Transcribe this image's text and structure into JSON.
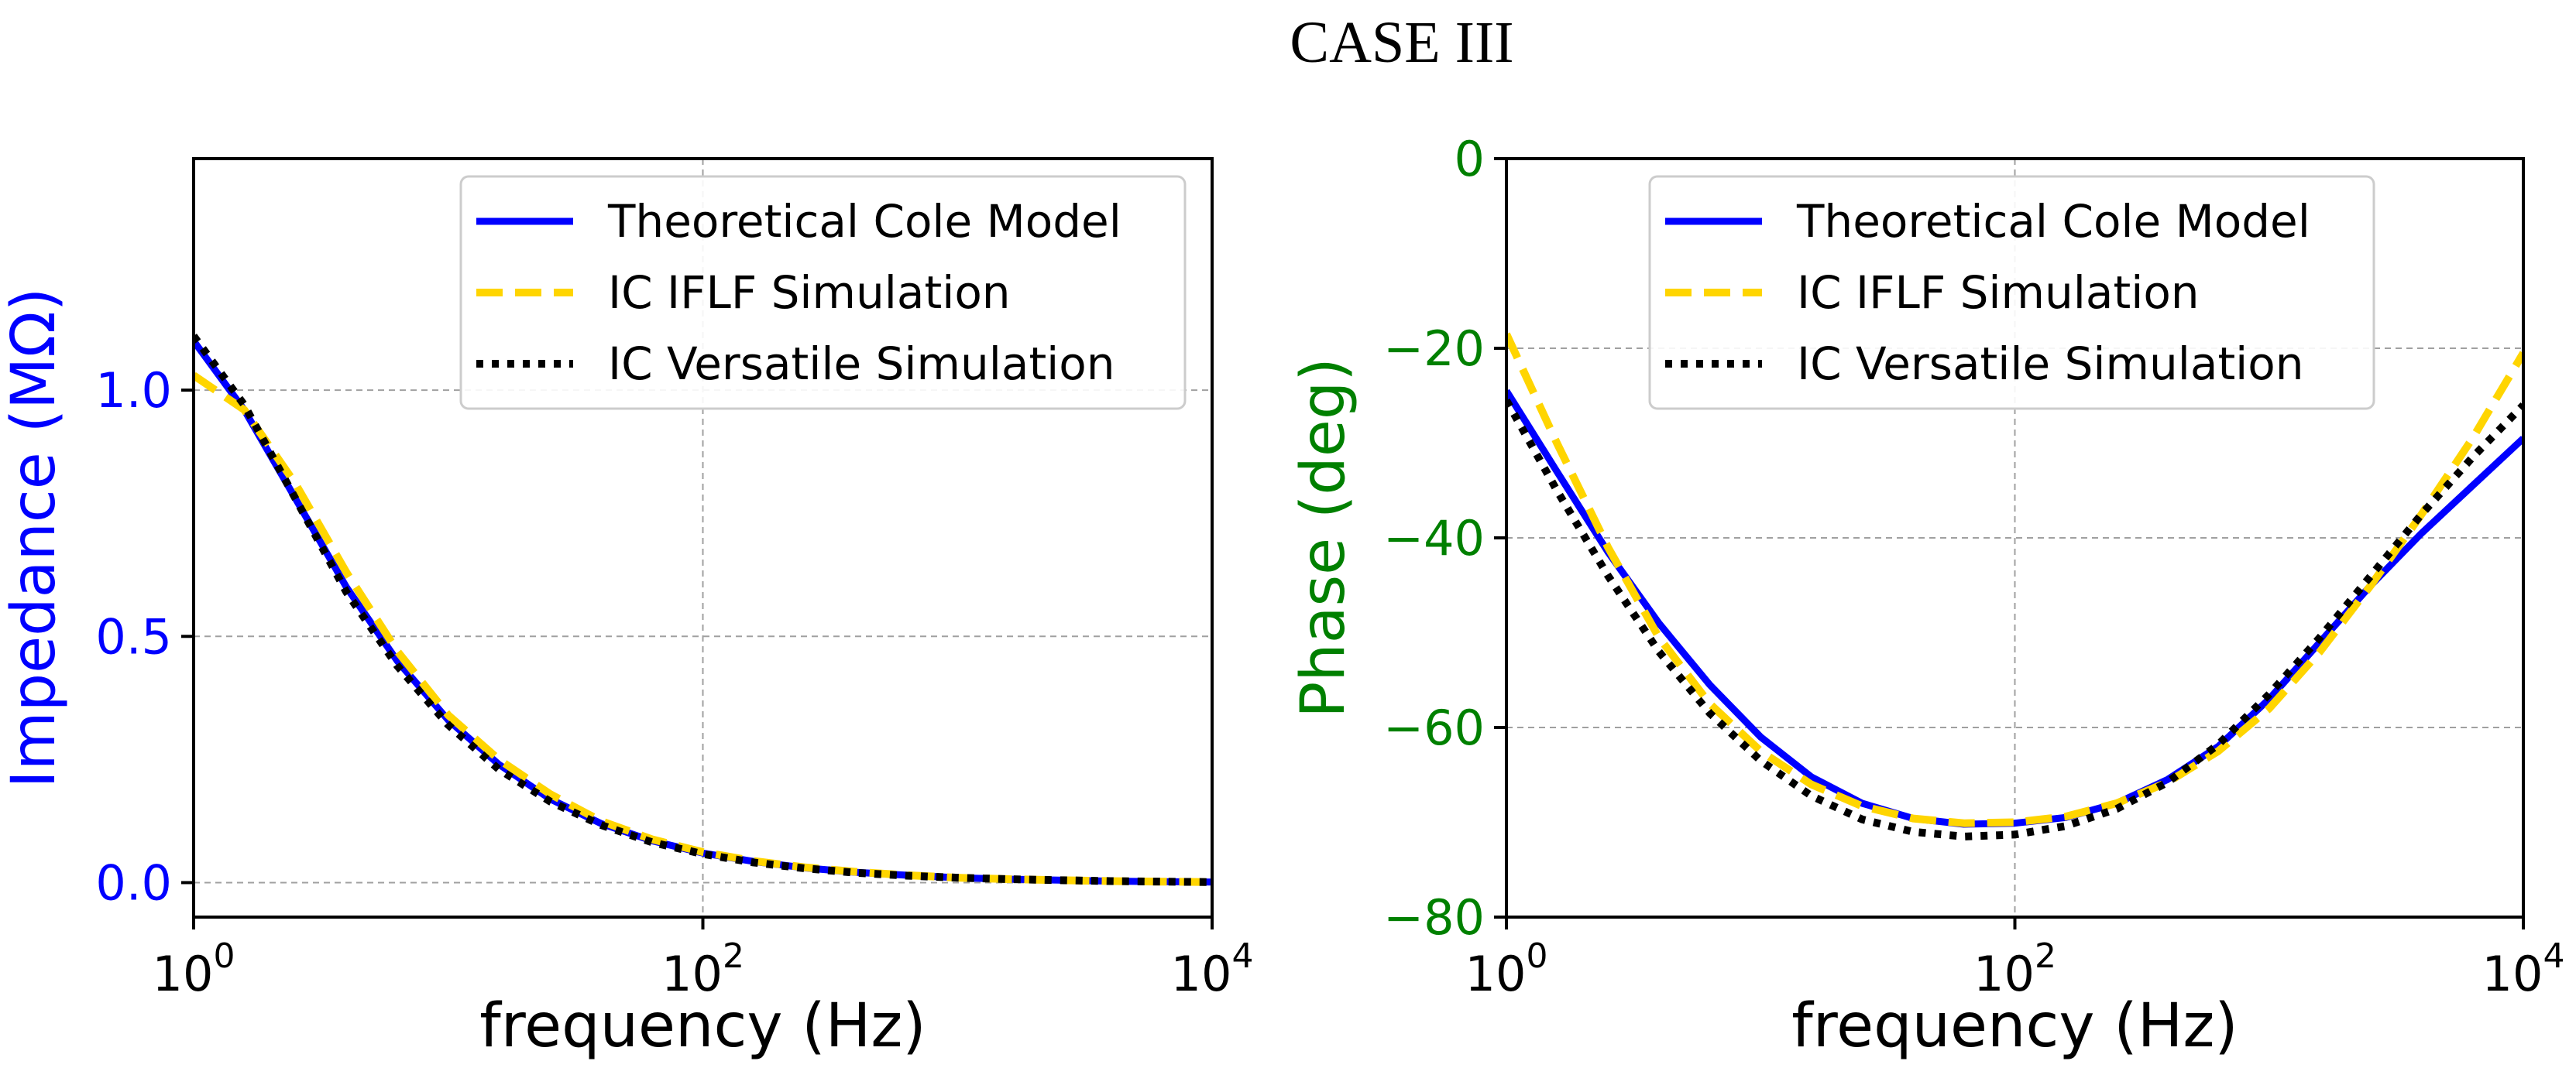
{
  "title": "CASE III",
  "colors": {
    "theoretical": "#0000ff",
    "iflf": "#ffd500",
    "versatile": "#000000",
    "left_axis": "#0000ff",
    "right_axis": "#008000",
    "grid": "#a0a0a0"
  },
  "chart_data": [
    {
      "type": "line",
      "xscale": "log",
      "xlabel": "frequency (Hz)",
      "ylabel": "Impedance (MΩ)",
      "xlim": [
        1,
        10000
      ],
      "ylim": [
        -0.07,
        1.47
      ],
      "xticks": [
        {
          "value": 1,
          "base": "10",
          "exp": "0"
        },
        {
          "value": 100,
          "base": "10",
          "exp": "2"
        },
        {
          "value": 10000,
          "base": "10",
          "exp": "4"
        }
      ],
      "yticks": [
        {
          "value": 0.0,
          "label": "0.0"
        },
        {
          "value": 0.5,
          "label": "0.5"
        },
        {
          "value": 1.0,
          "label": "1.0"
        }
      ],
      "grid": true,
      "legend_position": "top-right",
      "series": [
        {
          "name": "Theoretical Cole Model",
          "style": "solid",
          "x": [
            1,
            1.58,
            2.51,
            3.98,
            6.31,
            10,
            15.8,
            25.1,
            39.8,
            63.1,
            100,
            158,
            251,
            398,
            631,
            1000,
            1585,
            2512,
            3981,
            6310,
            10000
          ],
          "y": [
            1.1,
            0.96,
            0.78,
            0.6,
            0.45,
            0.33,
            0.24,
            0.17,
            0.12,
            0.085,
            0.06,
            0.043,
            0.03,
            0.021,
            0.015,
            0.01,
            0.007,
            0.005,
            0.003,
            0.002,
            0.001
          ]
        },
        {
          "name": "IC IFLF Simulation",
          "style": "dashed",
          "x": [
            1,
            1.58,
            2.51,
            3.98,
            6.31,
            10,
            15.8,
            25.1,
            39.8,
            63.1,
            100,
            158,
            251,
            398,
            631,
            1000,
            1585,
            2512,
            3981,
            6310,
            10000
          ],
          "y": [
            1.03,
            0.96,
            0.81,
            0.63,
            0.47,
            0.34,
            0.25,
            0.18,
            0.125,
            0.088,
            0.062,
            0.044,
            0.031,
            0.022,
            0.015,
            0.01,
            0.007,
            0.005,
            0.003,
            0.002,
            0.001
          ]
        },
        {
          "name": "IC Versatile Simulation",
          "style": "dotted",
          "x": [
            1,
            1.58,
            2.51,
            3.98,
            6.31,
            10,
            15.8,
            25.1,
            39.8,
            63.1,
            100,
            158,
            251,
            398,
            631,
            1000,
            1585,
            2512,
            3981,
            6310,
            10000
          ],
          "y": [
            1.11,
            0.97,
            0.78,
            0.59,
            0.44,
            0.32,
            0.23,
            0.165,
            0.117,
            0.082,
            0.058,
            0.041,
            0.029,
            0.02,
            0.014,
            0.01,
            0.007,
            0.005,
            0.003,
            0.002,
            0.001
          ]
        }
      ]
    },
    {
      "type": "line",
      "xscale": "log",
      "xlabel": "frequency (Hz)",
      "ylabel": "Phase (deg)",
      "xlim": [
        1,
        10000
      ],
      "ylim": [
        -80,
        0
      ],
      "xticks": [
        {
          "value": 1,
          "base": "10",
          "exp": "0"
        },
        {
          "value": 100,
          "base": "10",
          "exp": "2"
        },
        {
          "value": 10000,
          "base": "10",
          "exp": "4"
        }
      ],
      "yticks": [
        {
          "value": 0,
          "label": "0"
        },
        {
          "value": -20,
          "label": "−20"
        },
        {
          "value": -40,
          "label": "−40"
        },
        {
          "value": -60,
          "label": "−60"
        },
        {
          "value": -80,
          "label": "−80"
        }
      ],
      "grid": true,
      "legend_position": "top-center",
      "series": [
        {
          "name": "Theoretical Cole Model",
          "style": "solid",
          "x": [
            1,
            1.58,
            2.51,
            3.98,
            6.31,
            10,
            15.8,
            25.1,
            39.8,
            63.1,
            100,
            158,
            251,
            398,
            631,
            1000,
            1585,
            2512,
            3981,
            6310,
            10000
          ],
          "y": [
            -24.5,
            -33,
            -41.5,
            -49,
            -55.5,
            -61,
            -65.2,
            -68,
            -69.6,
            -70.2,
            -70.1,
            -69.5,
            -68,
            -65.5,
            -62,
            -57,
            -51,
            -45,
            -39.5,
            -34.5,
            -29.5
          ]
        },
        {
          "name": "IC IFLF Simulation",
          "style": "dashed",
          "x": [
            1,
            1.58,
            2.51,
            3.98,
            6.31,
            10,
            15.8,
            25.1,
            39.8,
            63.1,
            100,
            158,
            251,
            398,
            631,
            1000,
            1585,
            2512,
            3981,
            6310,
            10000
          ],
          "y": [
            -18.5,
            -30,
            -41,
            -50.5,
            -57.5,
            -62.5,
            -66,
            -68.3,
            -69.6,
            -70.1,
            -70,
            -69.4,
            -68,
            -65.8,
            -62.5,
            -58,
            -52,
            -45,
            -37.5,
            -29.5,
            -20.5
          ]
        },
        {
          "name": "IC Versatile Simulation",
          "style": "dotted",
          "x": [
            1,
            1.58,
            2.51,
            3.98,
            6.31,
            10,
            15.8,
            25.1,
            39.8,
            63.1,
            100,
            158,
            251,
            398,
            631,
            1000,
            1585,
            2512,
            3981,
            6310,
            10000
          ],
          "y": [
            -25.5,
            -35,
            -44,
            -52,
            -58.5,
            -63.5,
            -67.2,
            -69.7,
            -71,
            -71.5,
            -71.3,
            -70.4,
            -68.6,
            -65.8,
            -61.8,
            -56.5,
            -50.5,
            -44,
            -37.5,
            -31.5,
            -26
          ]
        }
      ]
    }
  ]
}
